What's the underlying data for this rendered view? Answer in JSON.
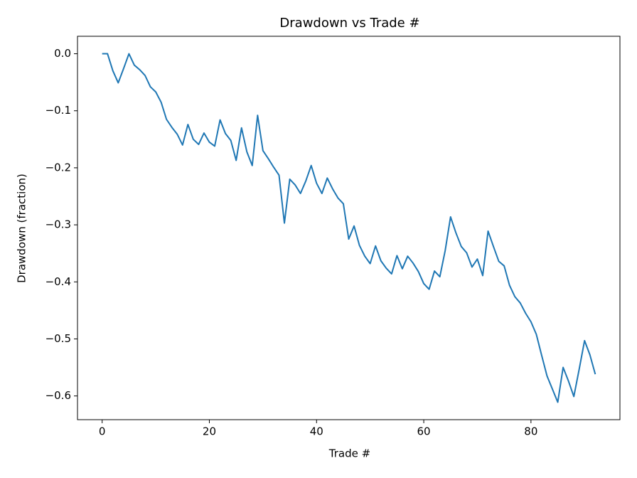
{
  "chart_data": {
    "type": "line",
    "title": "Drawdown vs Trade #",
    "x_label": "Trade #",
    "y_label": "Drawdown (fraction)",
    "x": [
      0,
      1,
      2,
      3,
      4,
      5,
      6,
      7,
      8,
      9,
      10,
      11,
      12,
      13,
      14,
      15,
      16,
      17,
      18,
      19,
      20,
      21,
      22,
      23,
      24,
      25,
      26,
      27,
      28,
      29,
      30,
      31,
      32,
      33,
      34,
      35,
      36,
      37,
      38,
      39,
      40,
      41,
      42,
      43,
      44,
      45,
      46,
      47,
      48,
      49,
      50,
      51,
      52,
      53,
      54,
      55,
      56,
      57,
      58,
      59,
      60,
      61,
      62,
      63,
      64,
      65,
      66,
      67,
      68,
      69,
      70,
      71,
      72,
      73,
      74,
      75,
      76,
      77,
      78,
      79,
      80,
      81,
      82,
      83,
      84,
      85,
      86,
      87,
      88,
      89,
      90,
      91,
      92
    ],
    "series": [
      {
        "name": "Drawdown",
        "color": "#1f77b4",
        "values": [
          0,
          0,
          -0.03,
          -0.051,
          -0.026,
          0,
          -0.02,
          -0.028,
          -0.038,
          -0.058,
          -0.067,
          -0.085,
          -0.115,
          -0.129,
          -0.141,
          -0.16,
          -0.124,
          -0.15,
          -0.159,
          -0.139,
          -0.155,
          -0.162,
          -0.116,
          -0.14,
          -0.152,
          -0.187,
          -0.13,
          -0.172,
          -0.196,
          -0.108,
          -0.17,
          -0.184,
          -0.199,
          -0.213,
          -0.297,
          -0.22,
          -0.23,
          -0.245,
          -0.223,
          -0.196,
          -0.227,
          -0.245,
          -0.218,
          -0.237,
          -0.253,
          -0.263,
          -0.325,
          -0.302,
          -0.336,
          -0.355,
          -0.368,
          -0.337,
          -0.363,
          -0.376,
          -0.386,
          -0.354,
          -0.377,
          -0.355,
          -0.367,
          -0.382,
          -0.403,
          -0.413,
          -0.381,
          -0.391,
          -0.345,
          -0.286,
          -0.314,
          -0.338,
          -0.349,
          -0.374,
          -0.36,
          -0.389,
          -0.311,
          -0.338,
          -0.364,
          -0.372,
          -0.406,
          -0.426,
          -0.437,
          -0.455,
          -0.47,
          -0.492,
          -0.529,
          -0.565,
          -0.588,
          -0.611,
          -0.55,
          -0.574,
          -0.601,
          -0.553,
          -0.503,
          -0.528,
          -0.562
        ]
      }
    ],
    "xlim": [
      -4.6,
      96.6
    ],
    "xticks": [
      0,
      20,
      40,
      60,
      80
    ],
    "ylim": [
      -0.6416,
      0.0306
    ],
    "yticks": [
      {
        "value": -0.6,
        "label": "−0.6"
      },
      {
        "value": -0.5,
        "label": "−0.5"
      },
      {
        "value": -0.4,
        "label": "−0.4"
      },
      {
        "value": -0.3,
        "label": "−0.3"
      },
      {
        "value": -0.2,
        "label": "−0.2"
      },
      {
        "value": -0.1,
        "label": "−0.1"
      },
      {
        "value": 0,
        "label": "0.0"
      }
    ],
    "grid": false
  }
}
